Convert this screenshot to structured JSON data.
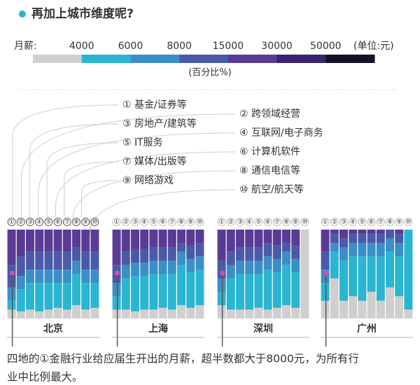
{
  "title": "再加上城市维度呢?",
  "legend": {
    "label": "月薪:",
    "ticks": [
      "4000",
      "6000",
      "8000",
      "15000",
      "30000",
      "50000"
    ],
    "unit": "(单位:元)",
    "caption": "(百分比%)",
    "colors": [
      "#cfcfcf",
      "#2bb5d0",
      "#3b8fc6",
      "#4a5aa8",
      "#5a3b94",
      "#3a2470",
      "#15122a"
    ]
  },
  "industries": [
    "① 基金/证券等",
    "② 跨领域经营",
    "③ 房地产/建筑等",
    "④ 互联网/电子商务",
    "⑤ IT服务",
    "⑥ 计算机软件",
    "⑦ 媒体/出版等",
    "⑧ 通信电信等",
    "⑨ 网络游戏",
    "⑩ 航空/航天等"
  ],
  "chart_data": [
    {
      "type": "bar",
      "title": "北京",
      "categories": [
        "①",
        "②",
        "③",
        "④",
        "⑤",
        "⑥",
        "⑦",
        "⑧",
        "⑨",
        "⑩"
      ],
      "ylim": [
        0,
        100
      ],
      "series": [
        {
          "color": "#cfcfcf",
          "values": [
            10,
            8,
            10,
            8,
            10,
            12,
            10,
            15,
            10,
            12
          ]
        },
        {
          "color": "#2bb5d0",
          "values": [
            10,
            25,
            30,
            32,
            30,
            28,
            30,
            35,
            30,
            28
          ]
        },
        {
          "color": "#3b8fc6",
          "values": [
            15,
            15,
            15,
            15,
            15,
            15,
            15,
            15,
            15,
            15
          ]
        },
        {
          "color": "#4a5aa8",
          "values": [
            25,
            22,
            20,
            20,
            20,
            20,
            20,
            15,
            20,
            20
          ]
        },
        {
          "color": "#5a3b94",
          "values": [
            40,
            30,
            25,
            25,
            25,
            25,
            25,
            20,
            25,
            25
          ]
        }
      ]
    },
    {
      "type": "bar",
      "title": "上海",
      "categories": [
        "①",
        "②",
        "③",
        "④",
        "⑤",
        "⑥",
        "⑦",
        "⑧",
        "⑨",
        "⑩"
      ],
      "ylim": [
        0,
        100
      ],
      "series": [
        {
          "color": "#cfcfcf",
          "values": [
            10,
            10,
            8,
            10,
            10,
            12,
            10,
            15,
            12,
            15
          ]
        },
        {
          "color": "#2bb5d0",
          "values": [
            15,
            35,
            40,
            38,
            40,
            38,
            40,
            45,
            40,
            40
          ]
        },
        {
          "color": "#3b8fc6",
          "values": [
            15,
            15,
            15,
            15,
            15,
            15,
            15,
            15,
            15,
            15
          ]
        },
        {
          "color": "#4a5aa8",
          "values": [
            20,
            15,
            15,
            15,
            15,
            15,
            15,
            10,
            15,
            15
          ]
        },
        {
          "color": "#5a3b94",
          "values": [
            40,
            25,
            22,
            22,
            20,
            20,
            20,
            15,
            18,
            15
          ]
        }
      ]
    },
    {
      "type": "bar",
      "title": "深圳",
      "categories": [
        "①",
        "②",
        "③",
        "④",
        "⑤",
        "⑥",
        "⑦",
        "⑧",
        "⑨",
        "⑩"
      ],
      "ylim": [
        0,
        100
      ],
      "series": [
        {
          "color": "#cfcfcf",
          "values": [
            15,
            10,
            10,
            10,
            12,
            10,
            12,
            15,
            12,
            100
          ]
        },
        {
          "color": "#2bb5d0",
          "values": [
            15,
            35,
            40,
            40,
            38,
            45,
            40,
            45,
            40,
            0
          ]
        },
        {
          "color": "#3b8fc6",
          "values": [
            15,
            15,
            15,
            15,
            15,
            15,
            15,
            15,
            15,
            0
          ]
        },
        {
          "color": "#4a5aa8",
          "values": [
            20,
            15,
            15,
            15,
            15,
            15,
            15,
            10,
            15,
            0
          ]
        },
        {
          "color": "#5a3b94",
          "values": [
            35,
            25,
            20,
            20,
            20,
            15,
            18,
            15,
            18,
            0
          ]
        }
      ]
    },
    {
      "type": "bar",
      "title": "广州",
      "categories": [
        "①",
        "②",
        "③",
        "④",
        "⑤",
        "⑥",
        "⑦",
        "⑧",
        "⑨",
        "⑩"
      ],
      "ylim": [
        0,
        100
      ],
      "series": [
        {
          "color": "#cfcfcf",
          "values": [
            20,
            45,
            20,
            25,
            20,
            30,
            20,
            35,
            25,
            10
          ]
        },
        {
          "color": "#2bb5d0",
          "values": [
            20,
            30,
            45,
            45,
            50,
            40,
            50,
            40,
            45,
            90
          ]
        },
        {
          "color": "#3b8fc6",
          "values": [
            15,
            10,
            15,
            15,
            15,
            15,
            15,
            15,
            15,
            0
          ]
        },
        {
          "color": "#4a5aa8",
          "values": [
            20,
            10,
            10,
            10,
            10,
            10,
            10,
            10,
            10,
            0
          ]
        },
        {
          "color": "#5a3b94",
          "values": [
            25,
            5,
            10,
            5,
            5,
            5,
            5,
            0,
            5,
            0
          ]
        }
      ]
    }
  ],
  "note": [
    "四地的①金融行业给应届生开出的月薪，超半数都大于8000元，为所有行",
    "业中比例最大。"
  ]
}
